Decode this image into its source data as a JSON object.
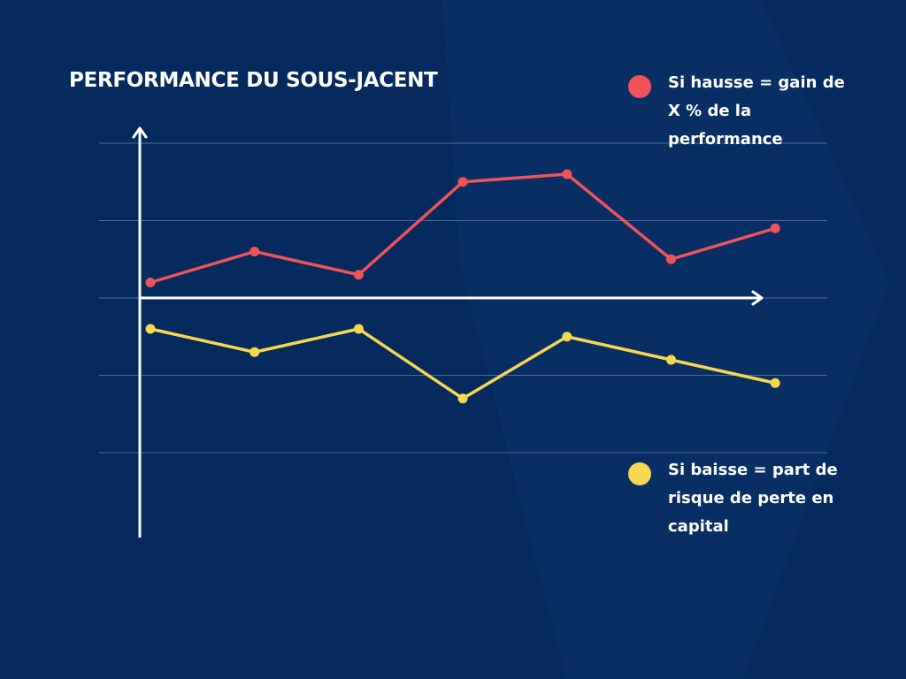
{
  "chart_data": {
    "type": "line",
    "title": "PERFORMANCE DU SOUS-JACENT",
    "xlabel": "",
    "ylabel": "",
    "x": [
      1,
      2,
      3,
      4,
      5,
      6,
      7
    ],
    "ylim": [
      -2,
      2
    ],
    "grid": true,
    "legend_placement": "right",
    "series": [
      {
        "name": "Si hausse = gain de X % de la performance",
        "color": "#f0525a",
        "values": [
          0.2,
          0.6,
          0.3,
          1.5,
          1.6,
          0.5,
          0.9
        ]
      },
      {
        "name": "Si baisse = part de risque de perte en capital",
        "color": "#f5d84e",
        "values": [
          -0.4,
          -0.7,
          -0.4,
          -1.3,
          -0.5,
          -0.8,
          -1.1
        ]
      }
    ]
  },
  "colors": {
    "background": "#062a5d",
    "axis": "#ffffff",
    "grid": "#4a6a9a"
  }
}
